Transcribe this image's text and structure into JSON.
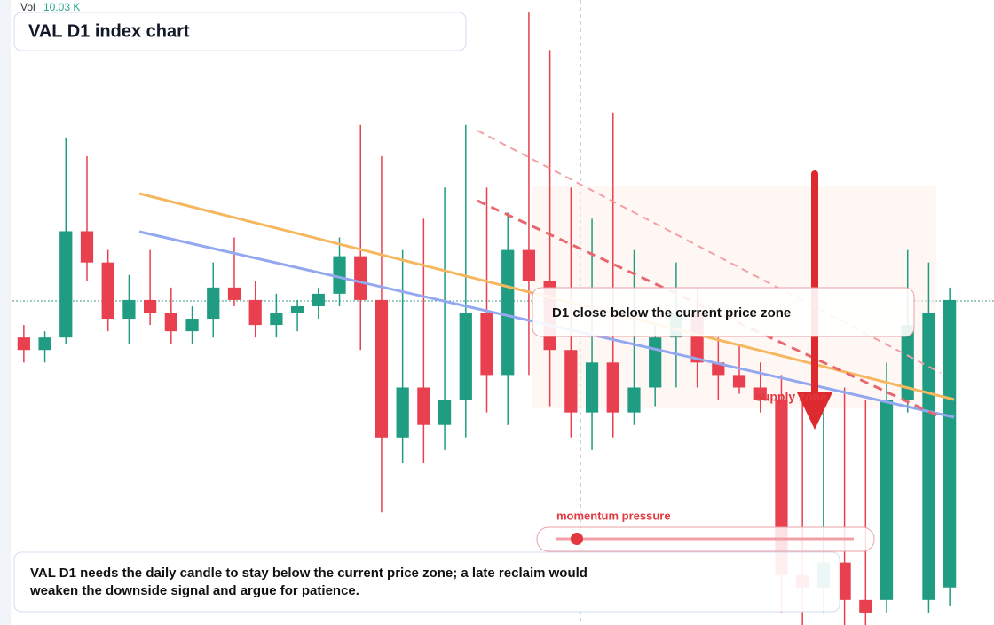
{
  "chart_data": {
    "type": "candlestick",
    "title": "VAL D1 index chart",
    "volume_label": "Vol",
    "volume_value": "10.03 K",
    "annotations": [
      "D1 close below the current price zone",
      "supply zone",
      "momentum pressure"
    ],
    "note": "VAL D1 needs the daily candle to stay below the current price zone; a late reclaim would weaken the downside signal and argue for patience.",
    "up_color": "#1f9c82",
    "down_color": "#e8404e",
    "ylim": [
      0,
      100
    ],
    "open": [
      46,
      44,
      46,
      63,
      58,
      49,
      52,
      50,
      47,
      49,
      54,
      52,
      48,
      50,
      51,
      53,
      59,
      52,
      30,
      38,
      32,
      36,
      50,
      40,
      60,
      55,
      44,
      34,
      42,
      34,
      38,
      46,
      50,
      42,
      40,
      38,
      36,
      8,
      6,
      10,
      4,
      4,
      36,
      4,
      6
    ],
    "high": [
      48,
      47,
      78,
      75,
      60,
      56,
      60,
      54,
      51,
      58,
      62,
      55,
      53,
      52,
      54,
      62,
      80,
      75,
      60,
      65,
      70,
      80,
      70,
      66,
      98,
      92,
      70,
      65,
      82,
      60,
      48,
      58,
      54,
      46,
      45,
      42,
      40,
      36,
      34,
      38,
      36,
      42,
      60,
      58,
      54
    ],
    "low": [
      42,
      42,
      45,
      55,
      47,
      45,
      48,
      45,
      45,
      46,
      51,
      46,
      46,
      47,
      49,
      51,
      44,
      18,
      26,
      26,
      28,
      30,
      34,
      32,
      40,
      35,
      30,
      28,
      30,
      32,
      35,
      38,
      38,
      36,
      37,
      34,
      2,
      0,
      2,
      0,
      0,
      2,
      34,
      2,
      3
    ],
    "close": [
      44,
      46,
      63,
      58,
      49,
      52,
      50,
      47,
      49,
      54,
      52,
      48,
      50,
      51,
      53,
      59,
      52,
      30,
      38,
      32,
      36,
      50,
      40,
      60,
      55,
      44,
      34,
      42,
      34,
      38,
      46,
      50,
      42,
      40,
      38,
      36,
      8,
      6,
      10,
      4,
      2,
      36,
      48,
      50,
      52
    ]
  }
}
